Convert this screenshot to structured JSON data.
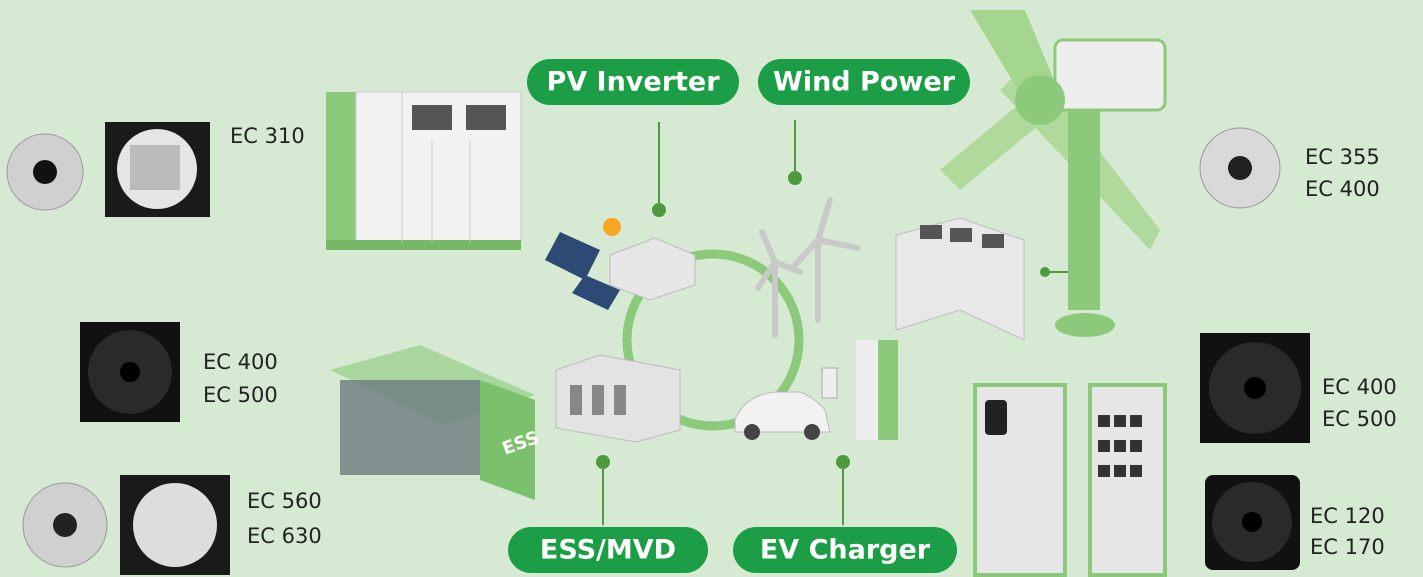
{
  "pills": [
    {
      "label": "PV Inverter"
    },
    {
      "label": "Wind Power"
    },
    {
      "label": "ESS/MVD"
    },
    {
      "label": "EV Charger"
    }
  ],
  "products": [
    {
      "lines": [
        "EC 310"
      ]
    },
    {
      "lines": [
        "EC 355",
        "EC 400"
      ]
    },
    {
      "lines": [
        "EC 400",
        "EC 500"
      ]
    },
    {
      "lines": [
        "EC 560",
        "EC 630"
      ]
    },
    {
      "lines": [
        "EC 400",
        "EC 500"
      ]
    },
    {
      "lines": [
        "EC 120",
        "EC 170"
      ]
    }
  ],
  "container_label": "ESS"
}
